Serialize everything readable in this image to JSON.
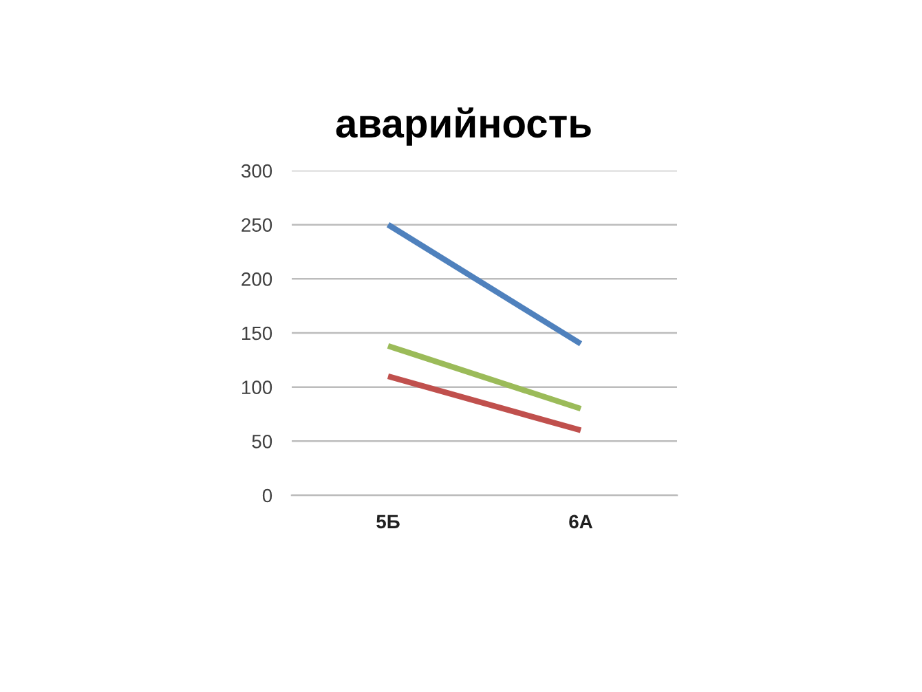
{
  "chart_data": {
    "type": "line",
    "title": "аварийность",
    "categories": [
      "5Б",
      "6А"
    ],
    "series": [
      {
        "color": "#4f81bd",
        "values": [
          250,
          140
        ]
      },
      {
        "color": "#c0504d",
        "values": [
          110,
          60
        ]
      },
      {
        "color": "#9bbb59",
        "values": [
          138,
          80
        ]
      }
    ],
    "ylim": [
      0,
      300
    ],
    "yticks": [
      0,
      50,
      100,
      150,
      200,
      250,
      300
    ],
    "grid": "y",
    "marker": "none",
    "line_style": "solid"
  }
}
